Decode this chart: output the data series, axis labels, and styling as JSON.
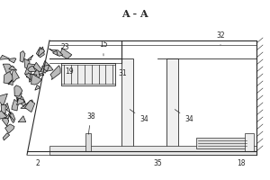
{
  "title": "A - A",
  "title_fontsize": 8,
  "bg_color": "#ffffff",
  "line_color": "#2a2a2a",
  "label_color": "#2a2a2a",
  "fig_width": 3.0,
  "fig_height": 2.0
}
